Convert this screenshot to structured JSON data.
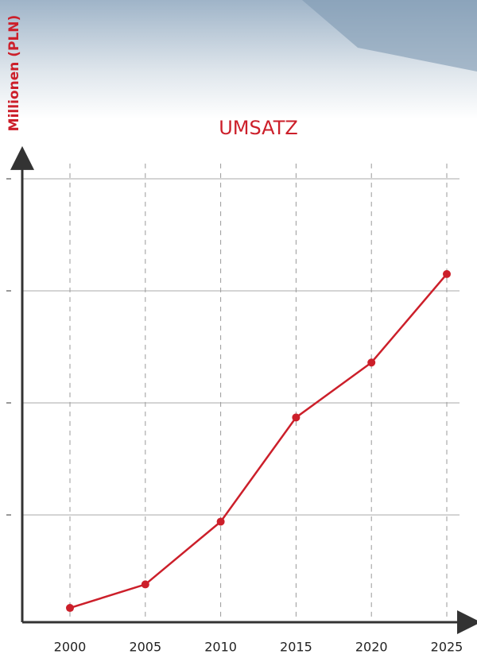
{
  "chart_data": {
    "type": "line",
    "title": "UMSATZ",
    "y_label": "Millionen (PLN)",
    "categories": [
      "2000",
      "2005",
      "2010",
      "2015",
      "2020",
      "2025"
    ],
    "values": [
      0.17,
      0.38,
      0.94,
      1.87,
      2.36,
      3.15
    ],
    "color": "#cc1f2a",
    "ylim": [
      0,
      4.1
    ],
    "yticks": [
      1,
      2,
      3,
      4
    ],
    "grid": true
  }
}
